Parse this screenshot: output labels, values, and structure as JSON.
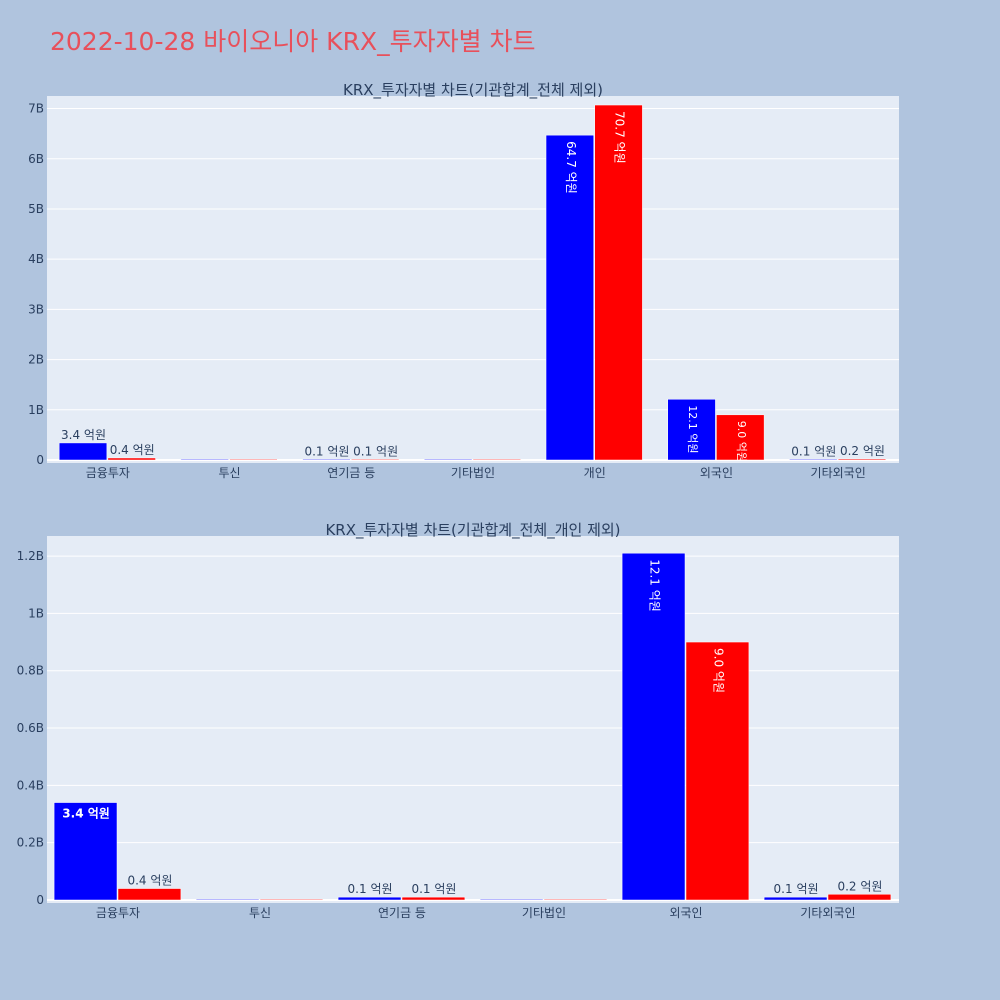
{
  "title": "2022-10-28 바이오니아 KRX_투자자별 차트",
  "colors": {
    "background": "#b0c4de",
    "plot_bg": "#e5ecf6",
    "buy": "#0000ff",
    "sell": "#ff0000",
    "title": "#e8505b"
  },
  "chart_data": [
    {
      "type": "bar",
      "title": "KRX_투자자별 차트(기관합계_전체 제외)",
      "categories": [
        "금융투자",
        "투신",
        "연기금 등",
        "기타법인",
        "개인",
        "외국인",
        "기타외국인"
      ],
      "series": [
        {
          "color": "#0000ff",
          "values": [
            0.34,
            0,
            0.01,
            0,
            6.47,
            1.21,
            0.01
          ],
          "labels": [
            "3.4 억원",
            "",
            "0.1 억원",
            "",
            "64.7 억원",
            "12.1 억원",
            "0.1 억원"
          ]
        },
        {
          "color": "#ff0000",
          "values": [
            0.04,
            0,
            0.01,
            0,
            7.07,
            0.9,
            0.02
          ],
          "labels": [
            "0.4 억원",
            "",
            "0.1 억원",
            "",
            "70.7 억원",
            "9.0 억원",
            "0.2 억원"
          ]
        }
      ],
      "yunit": "B",
      "ylim": [
        0,
        7.25
      ],
      "yticks": [
        0,
        1,
        2,
        3,
        4,
        5,
        6,
        7
      ],
      "ytick_labels": [
        "0",
        "1B",
        "2B",
        "3B",
        "4B",
        "5B",
        "6B",
        "7B"
      ],
      "grid": true
    },
    {
      "type": "bar",
      "title": "KRX_투자자별 차트(기관합계_전체_개인 제외)",
      "categories": [
        "금융투자",
        "투신",
        "연기금 등",
        "기타법인",
        "외국인",
        "기타외국인"
      ],
      "series": [
        {
          "color": "#0000ff",
          "values": [
            0.34,
            0,
            0.01,
            0,
            1.21,
            0.01
          ],
          "labels": [
            "3.4 억원",
            "",
            "0.1 억원",
            "",
            "12.1 억원",
            "0.1 억원"
          ]
        },
        {
          "color": "#ff0000",
          "values": [
            0.04,
            0,
            0.01,
            0,
            0.9,
            0.02
          ],
          "labels": [
            "0.4 억원",
            "",
            "0.1 억원",
            "",
            "9.0 억원",
            "0.2 억원"
          ]
        }
      ],
      "yunit": "B",
      "ylim": [
        0,
        1.27
      ],
      "yticks": [
        0,
        0.2,
        0.4,
        0.6,
        0.8,
        1.0,
        1.2
      ],
      "ytick_labels": [
        "0",
        "0.2B",
        "0.4B",
        "0.6B",
        "0.8B",
        "1B",
        "1.2B"
      ],
      "grid": true
    }
  ]
}
